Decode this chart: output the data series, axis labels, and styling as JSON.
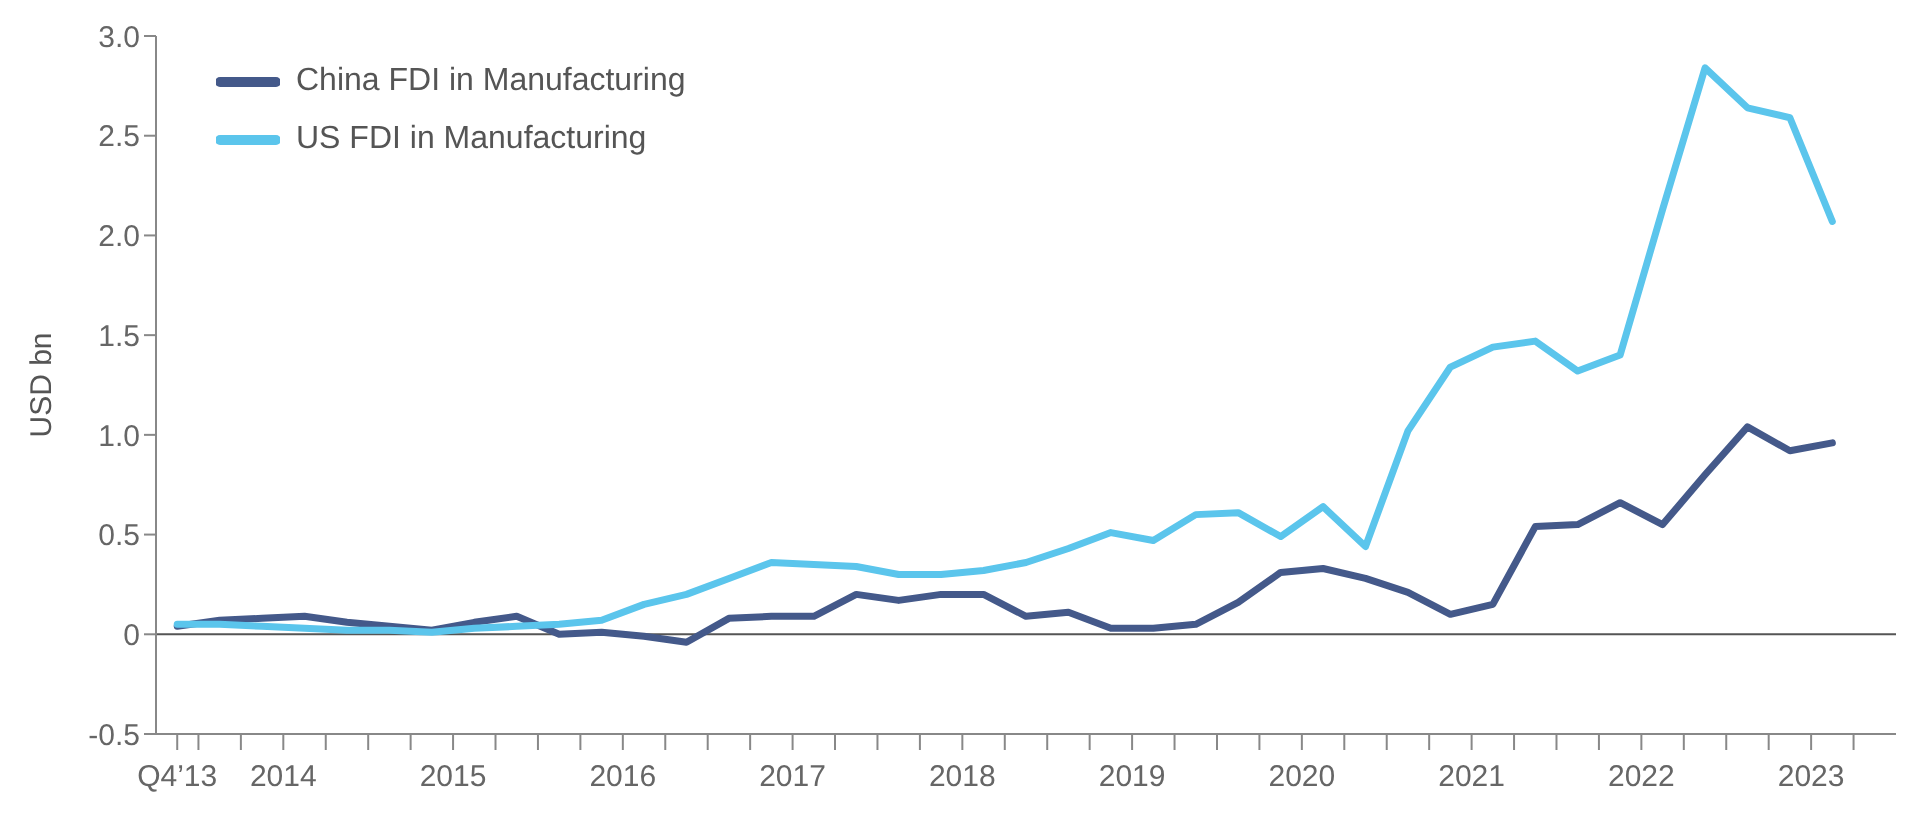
{
  "chart_data": {
    "type": "line",
    "ylabel": "USD bn",
    "legend": "top left",
    "grid": false,
    "marker": "none",
    "line_style": "solid",
    "x": [
      2013.875,
      2014.125,
      2014.375,
      2014.625,
      2014.875,
      2015.125,
      2015.375,
      2015.625,
      2015.875,
      2016.125,
      2016.375,
      2016.625,
      2016.875,
      2017.125,
      2017.375,
      2017.625,
      2017.875,
      2018.125,
      2018.375,
      2018.625,
      2018.875,
      2019.125,
      2019.375,
      2019.625,
      2019.875,
      2020.125,
      2020.375,
      2020.625,
      2020.875,
      2021.125,
      2021.375,
      2021.625,
      2021.875,
      2022.125,
      2022.375,
      2022.625,
      2022.875,
      2023.125,
      2023.375,
      2023.625
    ],
    "series": [
      {
        "name": "China FDI in Manufacturing",
        "color": "#44598a",
        "values": [
          0.04,
          0.07,
          0.08,
          0.09,
          0.06,
          0.04,
          0.02,
          0.06,
          0.09,
          0.0,
          0.01,
          -0.01,
          -0.04,
          0.08,
          0.09,
          0.09,
          0.2,
          0.17,
          0.2,
          0.2,
          0.09,
          0.11,
          0.03,
          0.03,
          0.05,
          0.16,
          0.31,
          0.33,
          0.28,
          0.21,
          0.1,
          0.15,
          0.54,
          0.55,
          0.66,
          0.55,
          0.8,
          1.04,
          0.92,
          0.96
        ]
      },
      {
        "name": "US FDI in Manufacturing",
        "color": "#5bc5ec",
        "values": [
          0.05,
          0.05,
          0.04,
          0.03,
          0.02,
          0.02,
          0.01,
          0.03,
          0.04,
          0.05,
          0.07,
          0.15,
          0.2,
          0.28,
          0.36,
          0.35,
          0.34,
          0.3,
          0.3,
          0.32,
          0.36,
          0.43,
          0.51,
          0.47,
          0.6,
          0.61,
          0.49,
          0.64,
          0.44,
          1.02,
          1.34,
          1.44,
          1.47,
          1.32,
          1.4,
          2.13,
          2.84,
          2.64,
          2.59,
          2.07
        ]
      }
    ],
    "ylim": [
      -0.5,
      3.0
    ],
    "yticks": [
      {
        "value": -0.5,
        "label": "-0.5"
      },
      0,
      0.5,
      {
        "value": 1.0,
        "label": "1.0"
      },
      1.5,
      {
        "value": 2.0,
        "label": "2.0"
      },
      2.5,
      {
        "value": 3.0,
        "label": "3.0"
      }
    ],
    "xlim": [
      2013.75,
      2024.0
    ],
    "xticks": [
      {
        "value": 2013.875,
        "label": "Q4’13"
      },
      {
        "value": 2014,
        "label": null
      },
      {
        "value": 2014.25,
        "label": null
      },
      {
        "value": 2014.5,
        "label": "2014"
      },
      {
        "value": 2014.75,
        "label": null
      },
      {
        "value": 2015,
        "label": null
      },
      {
        "value": 2015.25,
        "label": null
      },
      {
        "value": 2015.5,
        "label": "2015"
      },
      {
        "value": 2015.75,
        "label": null
      },
      {
        "value": 2016,
        "label": null
      },
      {
        "value": 2016.25,
        "label": null
      },
      {
        "value": 2016.5,
        "label": "2016"
      },
      {
        "value": 2016.75,
        "label": null
      },
      {
        "value": 2017,
        "label": null
      },
      {
        "value": 2017.25,
        "label": null
      },
      {
        "value": 2017.5,
        "label": "2017"
      },
      {
        "value": 2017.75,
        "label": null
      },
      {
        "value": 2018,
        "label": null
      },
      {
        "value": 2018.25,
        "label": null
      },
      {
        "value": 2018.5,
        "label": "2018"
      },
      {
        "value": 2018.75,
        "label": null
      },
      {
        "value": 2019,
        "label": null
      },
      {
        "value": 2019.25,
        "label": null
      },
      {
        "value": 2019.5,
        "label": "2019"
      },
      {
        "value": 2019.75,
        "label": null
      },
      {
        "value": 2020,
        "label": null
      },
      {
        "value": 2020.25,
        "label": null
      },
      {
        "value": 2020.5,
        "label": "2020"
      },
      {
        "value": 2020.75,
        "label": null
      },
      {
        "value": 2021,
        "label": null
      },
      {
        "value": 2021.25,
        "label": null
      },
      {
        "value": 2021.5,
        "label": "2021"
      },
      {
        "value": 2021.75,
        "label": null
      },
      {
        "value": 2022,
        "label": null
      },
      {
        "value": 2022.25,
        "label": null
      },
      {
        "value": 2022.5,
        "label": "2022"
      },
      {
        "value": 2022.75,
        "label": null
      },
      {
        "value": 2023,
        "label": null
      },
      {
        "value": 2023.25,
        "label": null
      },
      {
        "value": 2023.5,
        "label": "2023"
      },
      {
        "value": 2023.75,
        "label": null
      }
    ],
    "ref_lines": [
      {
        "axis": "y",
        "value": 0,
        "label": null,
        "color": "#555555",
        "line_style": "solid"
      }
    ]
  }
}
